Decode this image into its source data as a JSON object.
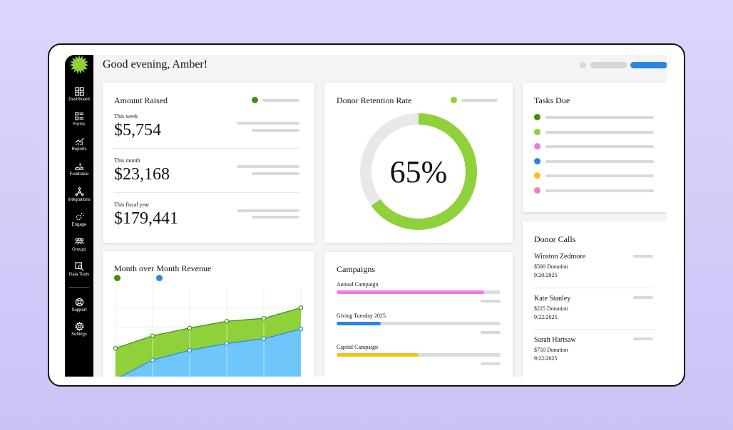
{
  "header": {
    "greeting": "Good evening, Amber!"
  },
  "sidebar": {
    "items": [
      {
        "label": "Dashboard",
        "icon": "grid-icon"
      },
      {
        "label": "Forms",
        "icon": "forms-icon"
      },
      {
        "label": "Reports",
        "icon": "reports-icon"
      },
      {
        "label": "Fundraise",
        "icon": "fundraise-icon"
      },
      {
        "label": "Integrations",
        "icon": "integrations-icon"
      },
      {
        "label": "Engage",
        "icon": "engage-icon"
      },
      {
        "label": "Groups",
        "icon": "groups-icon"
      },
      {
        "label": "Data Tools",
        "icon": "data-tools-icon"
      },
      {
        "label": "Support",
        "icon": "support-icon"
      },
      {
        "label": "Settings",
        "icon": "gear-icon"
      }
    ]
  },
  "amount_raised": {
    "title": "Amount Raised",
    "rows": [
      {
        "period": "This week",
        "amount": "$5,754"
      },
      {
        "period": "This month",
        "amount": "$23,168"
      },
      {
        "period": "This fiscal year",
        "amount": "$179,441"
      }
    ]
  },
  "retention": {
    "title": "Donor Retention Rate",
    "value_label": "65%",
    "value": 0.65,
    "color": "#8fd13a"
  },
  "tasks": {
    "title": "Tasks Due",
    "dot_colors": [
      "#3b8f12",
      "#8fd13a",
      "#ee7ce6",
      "#2b85e3",
      "#f5c21b",
      "#ef7fb6"
    ]
  },
  "revenue": {
    "title": "Month over Month Revenue",
    "legend_colors": [
      "#3b8f12",
      "#2b85e3"
    ],
    "chart_data": {
      "type": "area",
      "x": [
        1,
        2,
        3,
        4,
        5,
        6
      ],
      "series": [
        {
          "values": [
            38,
            51,
            59,
            66,
            69,
            80
          ],
          "color": "#8fd13a"
        },
        {
          "values": [
            6,
            26,
            36,
            43,
            48,
            58
          ],
          "color": "#6ec6fb"
        }
      ],
      "ylim": [
        0,
        100
      ]
    }
  },
  "campaigns": {
    "title": "Campaigns",
    "items": [
      {
        "label": "Annual Campaign",
        "progress": 0.9,
        "color": "#ee7ce6"
      },
      {
        "label": "Giving Tuesday 2025",
        "progress": 0.27,
        "color": "#2b85e3"
      },
      {
        "label": "Capital Campaign",
        "progress": 0.5,
        "color": "#f5c21b"
      }
    ]
  },
  "donor_calls": {
    "title": "Donor Calls",
    "items": [
      {
        "name": "Winston Zedmore",
        "donation": "$500 Donation",
        "date": "9/20/2025"
      },
      {
        "name": "Kate Stanley",
        "donation": "$225 Donation",
        "date": "9/22/2025"
      },
      {
        "name": "Sarah Hartsaw",
        "donation": "$750 Donation",
        "date": "9/22/2025"
      }
    ]
  }
}
